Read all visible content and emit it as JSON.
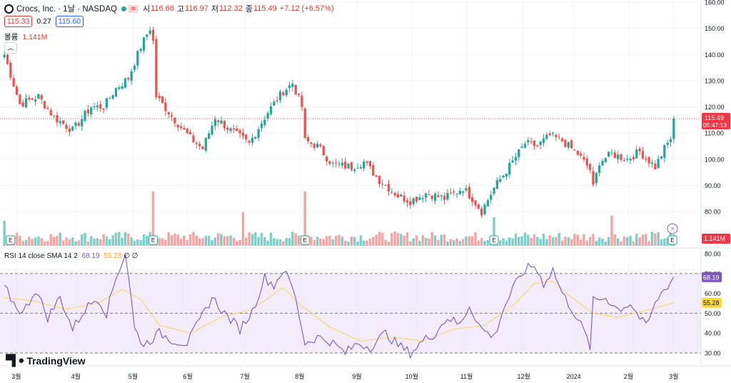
{
  "legend": {
    "symbol": "Crocs, Inc. · 1날 · NASDAQ",
    "open_label": "시",
    "open": "116.66",
    "high_label": "고",
    "high": "116.97",
    "low_label": "저",
    "low": "112.32",
    "close_label": "종",
    "close": "115.49",
    "change": "+7.12 (+6.57%)"
  },
  "quote": {
    "bid": "115.33",
    "spread": "0.27",
    "ask": "115.60"
  },
  "volume_legend": {
    "label": "볼륨",
    "value": "1.141M"
  },
  "rsi_legend": {
    "label": "RSI 14 close SMA 14 2",
    "rsi": "68.19",
    "sma": "55.28",
    "extra": "∅ ∅"
  },
  "brand": "TradingView",
  "colors": {
    "up": "#26a69a",
    "down": "#ef5350",
    "rsi": "#7e57c2",
    "sma": "#f9d77a",
    "rsi_band": "#ede7f6"
  },
  "chart_data": [
    {
      "type": "candlestick",
      "title": "Crocs, Inc. · 1날 · NASDAQ",
      "x_ticks": [
        "3월",
        "4월",
        "5월",
        "6월",
        "7월",
        "8월",
        "9월",
        "10월",
        "11월",
        "12월",
        "2024",
        "2월",
        "3월"
      ],
      "y_ticks": [
        "80.00",
        "90.00",
        "100.00",
        "110.00",
        "120.00",
        "130.00",
        "140.00",
        "150.00",
        "160.00"
      ],
      "ylim": [
        75,
        160
      ],
      "last_price": {
        "value": "115.49",
        "countdown": "05:47:13"
      },
      "close_path": [
        [
          0,
          140
        ],
        [
          5,
          121
        ],
        [
          11,
          124
        ],
        [
          16,
          116
        ],
        [
          22,
          111
        ],
        [
          28,
          120
        ],
        [
          32,
          120
        ],
        [
          36,
          127
        ],
        [
          40,
          131
        ],
        [
          44,
          143
        ],
        [
          47,
          150
        ],
        [
          48,
          145
        ],
        [
          49,
          124
        ],
        [
          55,
          115
        ],
        [
          60,
          108
        ],
        [
          64,
          104
        ],
        [
          68,
          116
        ],
        [
          73,
          111
        ],
        [
          79,
          106
        ],
        [
          85,
          118
        ],
        [
          90,
          126
        ],
        [
          93,
          129
        ],
        [
          96,
          120
        ],
        [
          97,
          107
        ],
        [
          101,
          105
        ],
        [
          106,
          98
        ],
        [
          112,
          97
        ],
        [
          116,
          99
        ],
        [
          121,
          92
        ],
        [
          127,
          86
        ],
        [
          131,
          84
        ],
        [
          136,
          87
        ],
        [
          142,
          85
        ],
        [
          148,
          89
        ],
        [
          151,
          85
        ],
        [
          154,
          80
        ],
        [
          158,
          89
        ],
        [
          164,
          99
        ],
        [
          168,
          106
        ],
        [
          172,
          105
        ],
        [
          176,
          109
        ],
        [
          180,
          107
        ],
        [
          185,
          102
        ],
        [
          189,
          96
        ],
        [
          190,
          89
        ],
        [
          192,
          99
        ],
        [
          196,
          102
        ],
        [
          201,
          100
        ],
        [
          205,
          103
        ],
        [
          210,
          97
        ],
        [
          213,
          104
        ],
        [
          215,
          108
        ],
        [
          216,
          115.49
        ]
      ]
    },
    {
      "type": "bar",
      "title": "볼륨",
      "last_value": "1.141M",
      "earnings_markers": [
        "E",
        "E",
        "E",
        "E",
        "E"
      ],
      "earnings_at": [
        2,
        48,
        97,
        158,
        219
      ],
      "spikes": [
        [
          0,
          35
        ],
        [
          48,
          76
        ],
        [
          77,
          47
        ],
        [
          97,
          76
        ],
        [
          158,
          40
        ],
        [
          196,
          42
        ]
      ]
    },
    {
      "type": "line",
      "title": "RSI 14 close SMA 14 2",
      "y_ticks": [
        "30.00",
        "40.00",
        "50.00",
        "60.00",
        "70.00",
        "80.00"
      ],
      "ylim": [
        25,
        82
      ],
      "band": [
        30,
        70
      ],
      "current": {
        "rsi": "68.19",
        "sma": "55.28"
      },
      "rsi_path": [
        [
          0,
          63
        ],
        [
          3,
          55
        ],
        [
          6,
          50
        ],
        [
          10,
          62
        ],
        [
          14,
          48
        ],
        [
          18,
          58
        ],
        [
          22,
          42
        ],
        [
          26,
          52
        ],
        [
          30,
          58
        ],
        [
          33,
          50
        ],
        [
          36,
          68
        ],
        [
          39,
          80
        ],
        [
          40,
          70
        ],
        [
          42,
          42
        ],
        [
          45,
          34
        ],
        [
          50,
          40
        ],
        [
          55,
          36
        ],
        [
          59,
          35
        ],
        [
          63,
          46
        ],
        [
          67,
          58
        ],
        [
          71,
          50
        ],
        [
          76,
          42
        ],
        [
          80,
          51
        ],
        [
          84,
          68
        ],
        [
          87,
          64
        ],
        [
          90,
          72
        ],
        [
          93,
          63
        ],
        [
          95,
          50
        ],
        [
          97,
          35
        ],
        [
          101,
          38
        ],
        [
          105,
          36
        ],
        [
          110,
          30
        ],
        [
          114,
          35
        ],
        [
          118,
          33
        ],
        [
          123,
          40
        ],
        [
          127,
          34
        ],
        [
          131,
          30
        ],
        [
          135,
          36
        ],
        [
          139,
          40
        ],
        [
          143,
          48
        ],
        [
          147,
          44
        ],
        [
          150,
          54
        ],
        [
          154,
          42
        ],
        [
          158,
          38
        ],
        [
          161,
          52
        ],
        [
          164,
          62
        ],
        [
          168,
          72
        ],
        [
          171,
          74
        ],
        [
          174,
          65
        ],
        [
          177,
          72
        ],
        [
          180,
          60
        ],
        [
          184,
          50
        ],
        [
          187,
          41
        ],
        [
          189,
          33
        ],
        [
          190,
          56
        ],
        [
          194,
          58
        ],
        [
          198,
          52
        ],
        [
          202,
          55
        ],
        [
          207,
          43
        ],
        [
          211,
          58
        ],
        [
          215,
          66
        ],
        [
          216,
          68.19
        ]
      ],
      "sma_path": [
        [
          0,
          58
        ],
        [
          10,
          56
        ],
        [
          20,
          52
        ],
        [
          30,
          55
        ],
        [
          38,
          62
        ],
        [
          44,
          57
        ],
        [
          50,
          44
        ],
        [
          60,
          40
        ],
        [
          70,
          48
        ],
        [
          80,
          52
        ],
        [
          90,
          63
        ],
        [
          95,
          55
        ],
        [
          105,
          43
        ],
        [
          115,
          36
        ],
        [
          125,
          38
        ],
        [
          135,
          36
        ],
        [
          145,
          42
        ],
        [
          155,
          44
        ],
        [
          165,
          55
        ],
        [
          171,
          65
        ],
        [
          177,
          66
        ],
        [
          183,
          58
        ],
        [
          190,
          50
        ],
        [
          198,
          48
        ],
        [
          206,
          51
        ],
        [
          216,
          55.28
        ]
      ]
    }
  ]
}
